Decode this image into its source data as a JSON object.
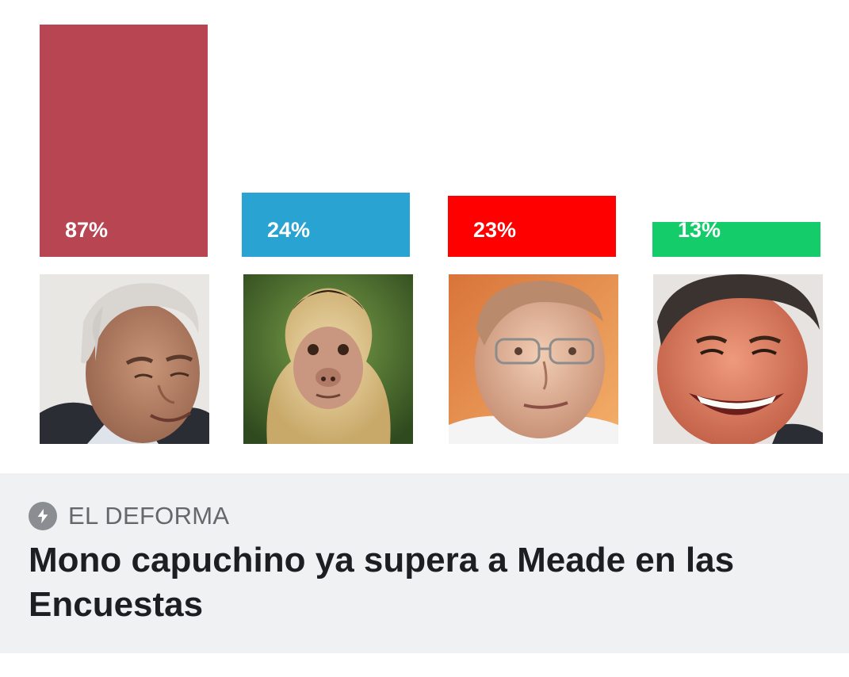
{
  "chart_data": {
    "type": "bar",
    "categories": [
      "",
      "",
      "",
      ""
    ],
    "values": [
      87,
      24,
      23,
      13
    ],
    "labels": [
      "87%",
      "24%",
      "23%",
      "13%"
    ],
    "colors": [
      "#b84552",
      "#29a3d1",
      "#fe0000",
      "#14cc6a"
    ],
    "unit": "%",
    "ylim": [
      0,
      87
    ],
    "title": "",
    "xlabel": "",
    "ylabel": "",
    "grid": false,
    "legend": "none"
  },
  "photos": [
    {
      "subject": "gray-haired man smiling"
    },
    {
      "subject": "capuchin monkey"
    },
    {
      "subject": "man with glasses"
    },
    {
      "subject": "man smiling broadly"
    }
  ],
  "caption": {
    "source_icon": "lightning-bolt-icon",
    "source": "EL DEFORMA",
    "headline": "Mono capuchino ya supera a Meade en las Encuestas"
  }
}
